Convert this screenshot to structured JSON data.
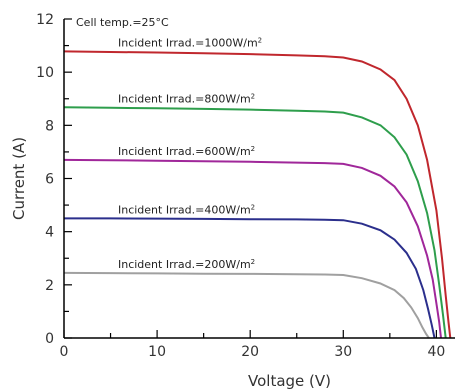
{
  "chart_data": {
    "type": "line",
    "xlabel": "Voltage (V)",
    "ylabel": "Current (A)",
    "xlim": [
      0,
      42
    ],
    "ylim": [
      0,
      12
    ],
    "x_ticks": [
      0,
      10,
      20,
      30,
      40
    ],
    "y_ticks": [
      0,
      2,
      4,
      6,
      8,
      10,
      12
    ],
    "annotation": "Cell temp.=25°C",
    "grid": false,
    "series": [
      {
        "name": "Incident Irrad.=1000W/m²",
        "label_prefix": "Incident Irrad.=1000W/m",
        "color": "#c0272d",
        "x": [
          0,
          5,
          10,
          15,
          20,
          25,
          28,
          30,
          32,
          34,
          35.5,
          36.8,
          38,
          39,
          40,
          40.6,
          41,
          41.3,
          41.5
        ],
        "y": [
          10.78,
          10.76,
          10.74,
          10.71,
          10.68,
          10.63,
          10.6,
          10.55,
          10.4,
          10.1,
          9.7,
          9.0,
          8.0,
          6.7,
          4.8,
          3.0,
          1.6,
          0.6,
          0
        ]
      },
      {
        "name": "Incident Irrad.=800W/m²",
        "label_prefix": "Incident Irrad.=800W/m",
        "color": "#2e9e4c",
        "x": [
          0,
          5,
          10,
          15,
          20,
          25,
          28,
          30,
          32,
          34,
          35.5,
          36.8,
          38,
          39,
          39.8,
          40.3,
          40.7,
          41
        ],
        "y": [
          8.68,
          8.66,
          8.64,
          8.62,
          8.59,
          8.55,
          8.52,
          8.48,
          8.3,
          8.0,
          7.55,
          6.9,
          5.9,
          4.7,
          3.3,
          2.0,
          0.9,
          0
        ]
      },
      {
        "name": "Incident Irrad.=600W/m²",
        "label_prefix": "Incident Irrad.=600W/m",
        "color": "#a0279a",
        "x": [
          0,
          5,
          10,
          15,
          20,
          25,
          28,
          30,
          32,
          34,
          35.5,
          36.8,
          38,
          39,
          39.6,
          40,
          40.3,
          40.5
        ],
        "y": [
          6.7,
          6.69,
          6.67,
          6.65,
          6.63,
          6.6,
          6.58,
          6.55,
          6.4,
          6.1,
          5.7,
          5.1,
          4.2,
          3.1,
          2.2,
          1.3,
          0.6,
          0
        ]
      },
      {
        "name": "Incident Irrad.=400W/m²",
        "label_prefix": "Incident Irrad.=400W/m",
        "color": "#2b2f8c",
        "x": [
          0,
          5,
          10,
          15,
          20,
          25,
          28,
          30,
          32,
          34,
          35.5,
          36.8,
          37.8,
          38.6,
          39.1,
          39.5,
          39.8
        ],
        "y": [
          4.5,
          4.5,
          4.49,
          4.48,
          4.47,
          4.46,
          4.45,
          4.43,
          4.3,
          4.05,
          3.7,
          3.2,
          2.6,
          1.8,
          1.1,
          0.5,
          0
        ]
      },
      {
        "name": "Incident Irrad.=200W/m²",
        "label_prefix": "Incident Irrad.=200W/m",
        "color": "#a0a0a0",
        "x": [
          0,
          5,
          10,
          15,
          20,
          25,
          28,
          30,
          32,
          34,
          35.5,
          36.5,
          37.3,
          38,
          38.5,
          38.9,
          39.2
        ],
        "y": [
          2.45,
          2.44,
          2.43,
          2.42,
          2.41,
          2.4,
          2.39,
          2.37,
          2.25,
          2.05,
          1.8,
          1.5,
          1.15,
          0.75,
          0.4,
          0.15,
          0
        ]
      }
    ]
  }
}
